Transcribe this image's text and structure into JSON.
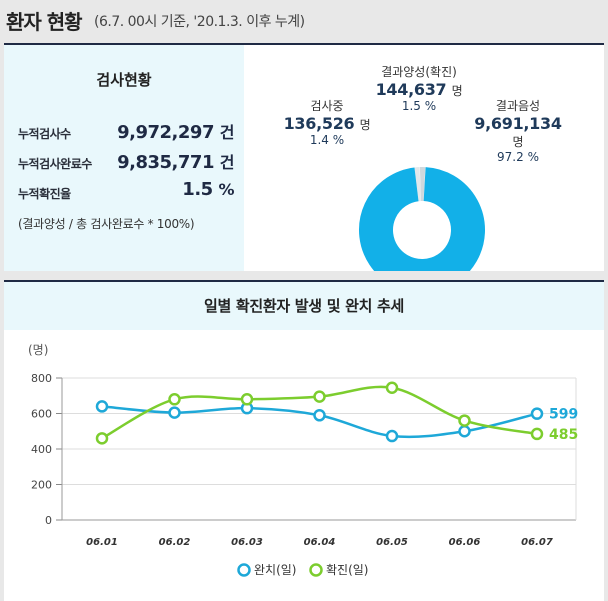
{
  "header": {
    "title": "환자 현황",
    "subtitle": "(6.7. 00시 기준, '20.1.3. 이후 누계)"
  },
  "stats": {
    "heading": "검사현황",
    "rows": [
      {
        "label": "누적검사수",
        "value": "9,972,297",
        "unit": "건"
      },
      {
        "label": "누적검사완료수",
        "value": "9,835,771",
        "unit": "건"
      },
      {
        "label": "누적확진율",
        "value": "1.5",
        "unit": "%"
      }
    ],
    "note": "(결과양성 / 총 검사완료수 * 100%)"
  },
  "pie": {
    "slices": [
      {
        "name": "결과음성",
        "value": 9691134,
        "display": "9,691,134",
        "unit": "명",
        "percent": "97.2 %",
        "color": "#12b0e8"
      },
      {
        "name": "결과양성(확진)",
        "value": 144637,
        "display": "144,637",
        "unit": "명",
        "percent": "1.5 %",
        "color": "#cfd8dd"
      },
      {
        "name": "검사중",
        "value": 136526,
        "display": "136,526",
        "unit": "명",
        "percent": "1.4 %",
        "color": "#e2e8eb"
      }
    ]
  },
  "chart_data": {
    "type": "line",
    "title": "일별 확진환자 발생 및 완치 추세",
    "ylabel": "(명)",
    "ylim": [
      0,
      800
    ],
    "yticks": [
      "0",
      "200",
      "400",
      "600",
      "800"
    ],
    "categories": [
      "06.01",
      "06.02",
      "06.03",
      "06.04",
      "06.05",
      "06.06",
      "06.07"
    ],
    "series": [
      {
        "name": "완치(일)",
        "color": "#1ea8d8",
        "values": [
          640,
          605,
          630,
          590,
          473,
          500,
          599
        ],
        "end_label": "599"
      },
      {
        "name": "확진(일)",
        "color": "#7ccd2e",
        "values": [
          460,
          680,
          680,
          695,
          745,
          560,
          485
        ],
        "end_label": "485"
      }
    ],
    "grid": true,
    "legend": "bottom"
  }
}
